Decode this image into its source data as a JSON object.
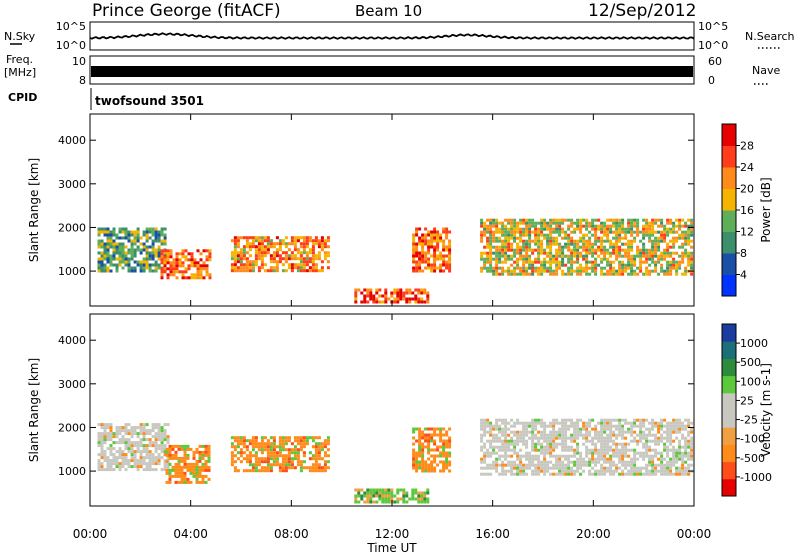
{
  "header": {
    "station": "Prince George (fitACF)",
    "beam": "Beam 10",
    "date": "12/Sep/2012"
  },
  "summary_panels": {
    "nsky_label": "N.Sky",
    "nsky_ticks": [
      "10^5",
      "10^0"
    ],
    "nsearch_label": "N.Search",
    "nsearch_ticks": [
      "10^5",
      "10^0"
    ],
    "freq_label_1": "Freq.",
    "freq_label_2": "[MHz]",
    "freq_ticks": [
      "10",
      "8"
    ],
    "nave_label": "Nave",
    "nave_ticks": [
      "60",
      "0"
    ],
    "cpid_label": "CPID",
    "cpid_value": "twofsound 3501"
  },
  "colors": {
    "power": [
      "#0033ff",
      "#1a4fa8",
      "#3b8f6a",
      "#5fae5a",
      "#f4b400",
      "#ff8c1a",
      "#ff3d1a",
      "#e60000"
    ],
    "velocity": [
      "#e60000",
      "#ff4d1a",
      "#ff8c1a",
      "#f0a040",
      "#c8c8c0",
      "#c8c8c0",
      "#5cc83c",
      "#2e8a3c",
      "#1c6e78",
      "#1a3ca0"
    ]
  },
  "chart_data": [
    {
      "type": "heatmap",
      "title": "Power",
      "ylabel": "Slant Range [km]",
      "yticks": [
        "4000",
        "3000",
        "2000",
        "1000"
      ],
      "ylim": [
        200,
        4600
      ],
      "xlim": [
        0,
        24
      ],
      "colorbar_label": "Power [dB]",
      "colorbar_ticks": [
        "28",
        "24",
        "20",
        "16",
        "12",
        "8",
        "4"
      ],
      "colorbar_range": [
        0,
        32
      ],
      "features": [
        {
          "t0": 0.3,
          "t1": 3.0,
          "r0": 1000,
          "r1": 2000,
          "level": 12
        },
        {
          "t0": 2.8,
          "t1": 4.8,
          "r0": 800,
          "r1": 1500,
          "level": 24
        },
        {
          "t0": 5.6,
          "t1": 9.5,
          "r0": 1000,
          "r1": 1800,
          "level": 22
        },
        {
          "t0": 10.5,
          "t1": 13.5,
          "r0": 250,
          "r1": 600,
          "level": 26
        },
        {
          "t0": 12.8,
          "t1": 14.3,
          "r0": 1000,
          "r1": 2000,
          "level": 24
        },
        {
          "t0": 15.5,
          "t1": 24.0,
          "r0": 900,
          "r1": 2200,
          "level": 18
        }
      ]
    },
    {
      "type": "heatmap",
      "title": "Velocity",
      "ylabel": "Slant Range [km]",
      "yticks": [
        "4000",
        "3000",
        "2000",
        "1000"
      ],
      "ylim": [
        200,
        4600
      ],
      "xlim": [
        0,
        24
      ],
      "xticks": [
        "00:00",
        "04:00",
        "08:00",
        "12:00",
        "16:00",
        "20:00",
        "00:00"
      ],
      "xlabel": "Time UT",
      "colorbar_label": "Velocity [m s-1]",
      "colorbar_ticks": [
        "1000",
        "500",
        "100",
        "25",
        "-25",
        "-100",
        "-500",
        "-1000"
      ],
      "features": [
        {
          "t0": 0.3,
          "t1": 3.2,
          "r0": 1000,
          "r1": 2100,
          "velocity": 0
        },
        {
          "t0": 3.0,
          "t1": 4.8,
          "r0": 700,
          "r1": 1600,
          "velocity": -150
        },
        {
          "t0": 5.6,
          "t1": 9.5,
          "r0": 1000,
          "r1": 1800,
          "velocity": -150
        },
        {
          "t0": 10.5,
          "t1": 13.5,
          "r0": 250,
          "r1": 600,
          "velocity": 80
        },
        {
          "t0": 12.8,
          "t1": 14.3,
          "r0": 1000,
          "r1": 2000,
          "velocity": -150
        },
        {
          "t0": 15.5,
          "t1": 24.0,
          "r0": 900,
          "r1": 2200,
          "velocity": 0
        }
      ]
    }
  ]
}
